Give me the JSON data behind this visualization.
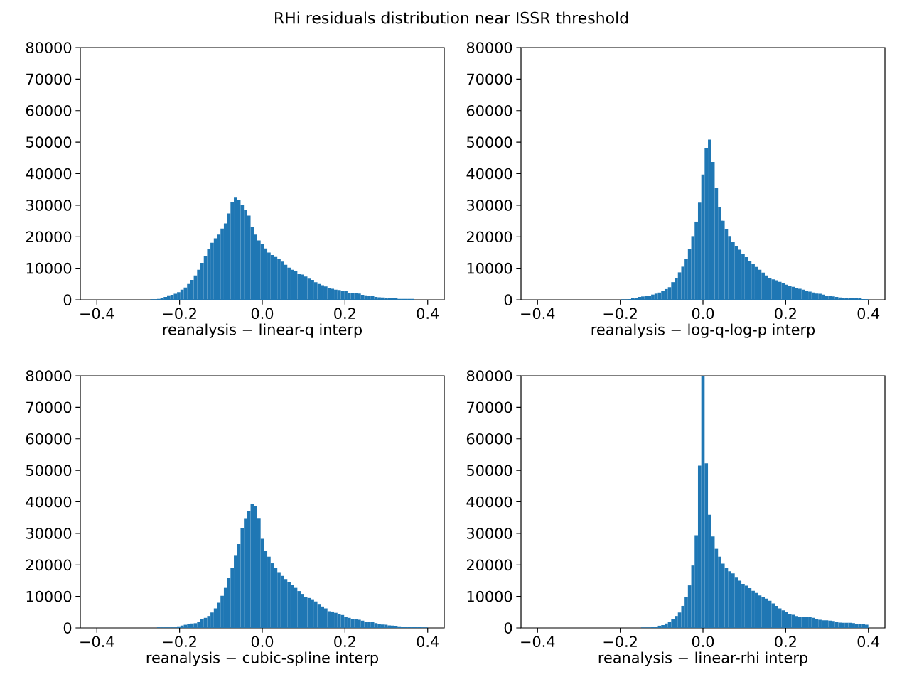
{
  "chart_data": [
    {
      "type": "histogram",
      "title": "RHi residuals distribution near ISSR threshold",
      "xlabel": "reanalysis − linear-q interp",
      "color": "#1f77b4",
      "xlim": [
        -0.44,
        0.44
      ],
      "ylim": [
        0,
        80000
      ],
      "xticks": [
        {
          "value": -0.4,
          "label": "−0.4"
        },
        {
          "value": -0.2,
          "label": "−0.2"
        },
        {
          "value": 0,
          "label": "0.0"
        },
        {
          "value": 0.2,
          "label": "0.2"
        },
        {
          "value": 0.4,
          "label": "0.4"
        }
      ],
      "yticks": [
        0,
        10000,
        20000,
        30000,
        40000,
        50000,
        60000,
        70000,
        80000
      ],
      "bins": [
        -0.4,
        -0.3919,
        -0.3838,
        -0.3758,
        -0.3677,
        -0.3596,
        -0.3515,
        -0.3434,
        -0.3354,
        -0.3273,
        -0.3192,
        -0.3111,
        -0.303,
        -0.2949,
        -0.2869,
        -0.2788,
        -0.2707,
        -0.2626,
        -0.2545,
        -0.2465,
        -0.2384,
        -0.2303,
        -0.2222,
        -0.2141,
        -0.2061,
        -0.198,
        -0.1899,
        -0.1818,
        -0.1737,
        -0.1657,
        -0.1576,
        -0.1495,
        -0.1414,
        -0.1333,
        -0.1253,
        -0.1172,
        -0.1091,
        -0.101,
        -0.0929,
        -0.0848,
        -0.0768,
        -0.0687,
        -0.0606,
        -0.0525,
        -0.0444,
        -0.0364,
        -0.0283,
        -0.0202,
        -0.0121,
        -0.004,
        0.004,
        0.0121,
        0.0202,
        0.0283,
        0.0364,
        0.0444,
        0.0525,
        0.0606,
        0.0687,
        0.0768,
        0.0848,
        0.0929,
        0.101,
        0.1091,
        0.1172,
        0.1253,
        0.1333,
        0.1414,
        0.1495,
        0.1576,
        0.1657,
        0.1737,
        0.1818,
        0.1899,
        0.198,
        0.2061,
        0.2141,
        0.2222,
        0.2303,
        0.2384,
        0.2465,
        0.2545,
        0.2626,
        0.2707,
        0.2788,
        0.2869,
        0.2949,
        0.303,
        0.3111,
        0.3192,
        0.3273,
        0.3354,
        0.3434,
        0.3515,
        0.3596,
        0.3677,
        0.3758,
        0.3838,
        0.3919,
        0.4
      ],
      "values": [
        0,
        0,
        0,
        0,
        0,
        0,
        0,
        0,
        0,
        0,
        0,
        0,
        0,
        0,
        0,
        0,
        150,
        150,
        300,
        700,
        900,
        1400,
        1600,
        1900,
        2400,
        3200,
        3900,
        5000,
        6300,
        7700,
        9500,
        11700,
        13800,
        16200,
        18100,
        19500,
        20700,
        22600,
        24200,
        27400,
        30900,
        32400,
        31700,
        30200,
        28500,
        26700,
        23100,
        20700,
        18800,
        17800,
        16300,
        15000,
        14200,
        13600,
        12900,
        12100,
        11100,
        10200,
        9500,
        9000,
        8100,
        8000,
        7400,
        6700,
        6300,
        5600,
        5000,
        4600,
        4200,
        3800,
        3500,
        3200,
        3100,
        2900,
        2900,
        2200,
        2100,
        2100,
        2000,
        1600,
        1400,
        1300,
        1100,
        900,
        800,
        750,
        700,
        700,
        700,
        500,
        300,
        300,
        300,
        300,
        300,
        0,
        0,
        0,
        0
      ]
    },
    {
      "type": "histogram",
      "xlabel": "reanalysis − log-q-log-p interp",
      "color": "#1f77b4",
      "xlim": [
        -0.44,
        0.44
      ],
      "ylim": [
        0,
        80000
      ],
      "xticks": [
        {
          "value": -0.4,
          "label": "−0.4"
        },
        {
          "value": -0.2,
          "label": "−0.2"
        },
        {
          "value": 0,
          "label": "0.0"
        },
        {
          "value": 0.2,
          "label": "0.2"
        },
        {
          "value": 0.4,
          "label": "0.4"
        }
      ],
      "yticks": [
        0,
        10000,
        20000,
        30000,
        40000,
        50000,
        60000,
        70000,
        80000
      ],
      "bins": [
        -0.4,
        -0.3919,
        -0.3838,
        -0.3758,
        -0.3677,
        -0.3596,
        -0.3515,
        -0.3434,
        -0.3354,
        -0.3273,
        -0.3192,
        -0.3111,
        -0.303,
        -0.2949,
        -0.2869,
        -0.2788,
        -0.2707,
        -0.2626,
        -0.2545,
        -0.2465,
        -0.2384,
        -0.2303,
        -0.2222,
        -0.2141,
        -0.2061,
        -0.198,
        -0.1899,
        -0.1818,
        -0.1737,
        -0.1657,
        -0.1576,
        -0.1495,
        -0.1414,
        -0.1333,
        -0.1253,
        -0.1172,
        -0.1091,
        -0.101,
        -0.0929,
        -0.0848,
        -0.0768,
        -0.0687,
        -0.0606,
        -0.0525,
        -0.0444,
        -0.0364,
        -0.0283,
        -0.0202,
        -0.0121,
        -0.004,
        0.004,
        0.0121,
        0.0202,
        0.0283,
        0.0364,
        0.0444,
        0.0525,
        0.0606,
        0.0687,
        0.0768,
        0.0848,
        0.0929,
        0.101,
        0.1091,
        0.1172,
        0.1253,
        0.1333,
        0.1414,
        0.1495,
        0.1576,
        0.1657,
        0.1737,
        0.1818,
        0.1899,
        0.198,
        0.2061,
        0.2141,
        0.2222,
        0.2303,
        0.2384,
        0.2465,
        0.2545,
        0.2626,
        0.2707,
        0.2788,
        0.2869,
        0.2949,
        0.303,
        0.3111,
        0.3192,
        0.3273,
        0.3354,
        0.3434,
        0.3515,
        0.3596,
        0.3677,
        0.3758,
        0.3838,
        0.3919,
        0.4
      ],
      "values": [
        0,
        0,
        0,
        0,
        0,
        0,
        0,
        0,
        0,
        0,
        0,
        0,
        0,
        0,
        0,
        0,
        0,
        0,
        0,
        0,
        0,
        0,
        0,
        0,
        0,
        150,
        150,
        200,
        450,
        600,
        900,
        1050,
        1300,
        1350,
        1650,
        1950,
        2300,
        2850,
        3400,
        4000,
        5600,
        6900,
        8700,
        10500,
        12900,
        16200,
        20200,
        24800,
        30800,
        39700,
        48000,
        50800,
        43700,
        35400,
        29300,
        25100,
        22300,
        20200,
        18300,
        17100,
        15900,
        14500,
        13500,
        12400,
        11400,
        10400,
        9500,
        8600,
        7700,
        6900,
        6500,
        6200,
        5700,
        5200,
        4800,
        4500,
        4100,
        3800,
        3500,
        3200,
        2900,
        2600,
        2300,
        2000,
        1900,
        1650,
        1350,
        1200,
        1050,
        900,
        750,
        700,
        500,
        450,
        450,
        450,
        450,
        200,
        150
      ]
    },
    {
      "type": "histogram",
      "xlabel": "reanalysis − cubic-spline interp",
      "color": "#1f77b4",
      "xlim": [
        -0.44,
        0.44
      ],
      "ylim": [
        0,
        80000
      ],
      "xticks": [
        {
          "value": -0.4,
          "label": "−0.4"
        },
        {
          "value": -0.2,
          "label": "−0.2"
        },
        {
          "value": 0,
          "label": "0.0"
        },
        {
          "value": 0.2,
          "label": "0.2"
        },
        {
          "value": 0.4,
          "label": "0.4"
        }
      ],
      "yticks": [
        0,
        10000,
        20000,
        30000,
        40000,
        50000,
        60000,
        70000,
        80000
      ],
      "bins": [
        -0.4,
        -0.3919,
        -0.3838,
        -0.3758,
        -0.3677,
        -0.3596,
        -0.3515,
        -0.3434,
        -0.3354,
        -0.3273,
        -0.3192,
        -0.3111,
        -0.303,
        -0.2949,
        -0.2869,
        -0.2788,
        -0.2707,
        -0.2626,
        -0.2545,
        -0.2465,
        -0.2384,
        -0.2303,
        -0.2222,
        -0.2141,
        -0.2061,
        -0.198,
        -0.1899,
        -0.1818,
        -0.1737,
        -0.1657,
        -0.1576,
        -0.1495,
        -0.1414,
        -0.1333,
        -0.1253,
        -0.1172,
        -0.1091,
        -0.101,
        -0.0929,
        -0.0848,
        -0.0768,
        -0.0687,
        -0.0606,
        -0.0525,
        -0.0444,
        -0.0364,
        -0.0283,
        -0.0202,
        -0.0121,
        -0.004,
        0.004,
        0.0121,
        0.0202,
        0.0283,
        0.0364,
        0.0444,
        0.0525,
        0.0606,
        0.0687,
        0.0768,
        0.0848,
        0.0929,
        0.101,
        0.1091,
        0.1172,
        0.1253,
        0.1333,
        0.1414,
        0.1495,
        0.1576,
        0.1657,
        0.1737,
        0.1818,
        0.1899,
        0.198,
        0.2061,
        0.2141,
        0.2222,
        0.2303,
        0.2384,
        0.2465,
        0.2545,
        0.2626,
        0.2707,
        0.2788,
        0.2869,
        0.2949,
        0.303,
        0.3111,
        0.3192,
        0.3273,
        0.3354,
        0.3434,
        0.3515,
        0.3596,
        0.3677,
        0.3758,
        0.3838,
        0.3919,
        0.4
      ],
      "values": [
        0,
        0,
        0,
        0,
        0,
        0,
        0,
        0,
        0,
        0,
        0,
        0,
        0,
        0,
        0,
        0,
        0,
        0,
        150,
        150,
        150,
        150,
        150,
        150,
        500,
        750,
        1000,
        1300,
        1400,
        1500,
        2000,
        2800,
        3200,
        3800,
        4900,
        6200,
        8000,
        10200,
        12700,
        16000,
        19100,
        22900,
        26600,
        31800,
        34800,
        37200,
        39300,
        38600,
        34900,
        28300,
        24500,
        22600,
        20500,
        19100,
        17700,
        16500,
        15500,
        14500,
        13700,
        12700,
        11700,
        10800,
        9800,
        9500,
        9100,
        8400,
        7400,
        6800,
        6200,
        5300,
        5200,
        4800,
        4400,
        4100,
        3600,
        3200,
        2900,
        2700,
        2600,
        2300,
        2000,
        1900,
        1800,
        1500,
        1200,
        1100,
        1000,
        800,
        750,
        700,
        500,
        450,
        400,
        400,
        400,
        400,
        400,
        200,
        200
      ]
    },
    {
      "type": "histogram",
      "xlabel": "reanalysis − linear-rhi interp",
      "color": "#1f77b4",
      "xlim": [
        -0.44,
        0.44
      ],
      "ylim": [
        0,
        80000
      ],
      "xticks": [
        {
          "value": -0.4,
          "label": "−0.4"
        },
        {
          "value": -0.2,
          "label": "−0.2"
        },
        {
          "value": 0,
          "label": "0.0"
        },
        {
          "value": 0.2,
          "label": "0.2"
        },
        {
          "value": 0.4,
          "label": "0.4"
        }
      ],
      "yticks": [
        0,
        10000,
        20000,
        30000,
        40000,
        50000,
        60000,
        70000,
        80000
      ],
      "bins": [
        -0.4,
        -0.3919,
        -0.3838,
        -0.3758,
        -0.3677,
        -0.3596,
        -0.3515,
        -0.3434,
        -0.3354,
        -0.3273,
        -0.3192,
        -0.3111,
        -0.303,
        -0.2949,
        -0.2869,
        -0.2788,
        -0.2707,
        -0.2626,
        -0.2545,
        -0.2465,
        -0.2384,
        -0.2303,
        -0.2222,
        -0.2141,
        -0.2061,
        -0.198,
        -0.1899,
        -0.1818,
        -0.1737,
        -0.1657,
        -0.1576,
        -0.1495,
        -0.1414,
        -0.1333,
        -0.1253,
        -0.1172,
        -0.1091,
        -0.101,
        -0.0929,
        -0.0848,
        -0.0768,
        -0.0687,
        -0.0606,
        -0.0525,
        -0.0444,
        -0.0364,
        -0.0283,
        -0.0202,
        -0.0121,
        -0.004,
        0.004,
        0.0121,
        0.0202,
        0.0283,
        0.0364,
        0.0444,
        0.0525,
        0.0606,
        0.0687,
        0.0768,
        0.0848,
        0.0929,
        0.101,
        0.1091,
        0.1172,
        0.1253,
        0.1333,
        0.1414,
        0.1495,
        0.1576,
        0.1657,
        0.1737,
        0.1818,
        0.1899,
        0.198,
        0.2061,
        0.2141,
        0.2222,
        0.2303,
        0.2384,
        0.2465,
        0.2545,
        0.2626,
        0.2707,
        0.2788,
        0.2869,
        0.2949,
        0.303,
        0.3111,
        0.3192,
        0.3273,
        0.3354,
        0.3434,
        0.3515,
        0.3596,
        0.3677,
        0.3758,
        0.3838,
        0.3919,
        0.4
      ],
      "values": [
        0,
        0,
        0,
        0,
        0,
        0,
        0,
        0,
        0,
        0,
        0,
        0,
        0,
        0,
        0,
        0,
        0,
        0,
        0,
        0,
        0,
        0,
        0,
        0,
        0,
        0,
        0,
        0,
        0,
        0,
        0,
        150,
        150,
        150,
        400,
        450,
        700,
        900,
        1400,
        2000,
        2800,
        3800,
        4900,
        7000,
        9800,
        13500,
        19800,
        29400,
        51500,
        80000,
        52200,
        35900,
        29000,
        25100,
        22600,
        20400,
        19100,
        18000,
        17300,
        16200,
        15000,
        14000,
        13400,
        12600,
        11800,
        11100,
        10300,
        9800,
        9300,
        8600,
        7800,
        7000,
        6200,
        5600,
        5100,
        4500,
        4200,
        3800,
        3500,
        3400,
        3400,
        3400,
        3200,
        2900,
        2600,
        2400,
        2400,
        2300,
        2200,
        2000,
        1700,
        1650,
        1650,
        1650,
        1500,
        1300,
        1300,
        1200,
        1000
      ]
    }
  ]
}
